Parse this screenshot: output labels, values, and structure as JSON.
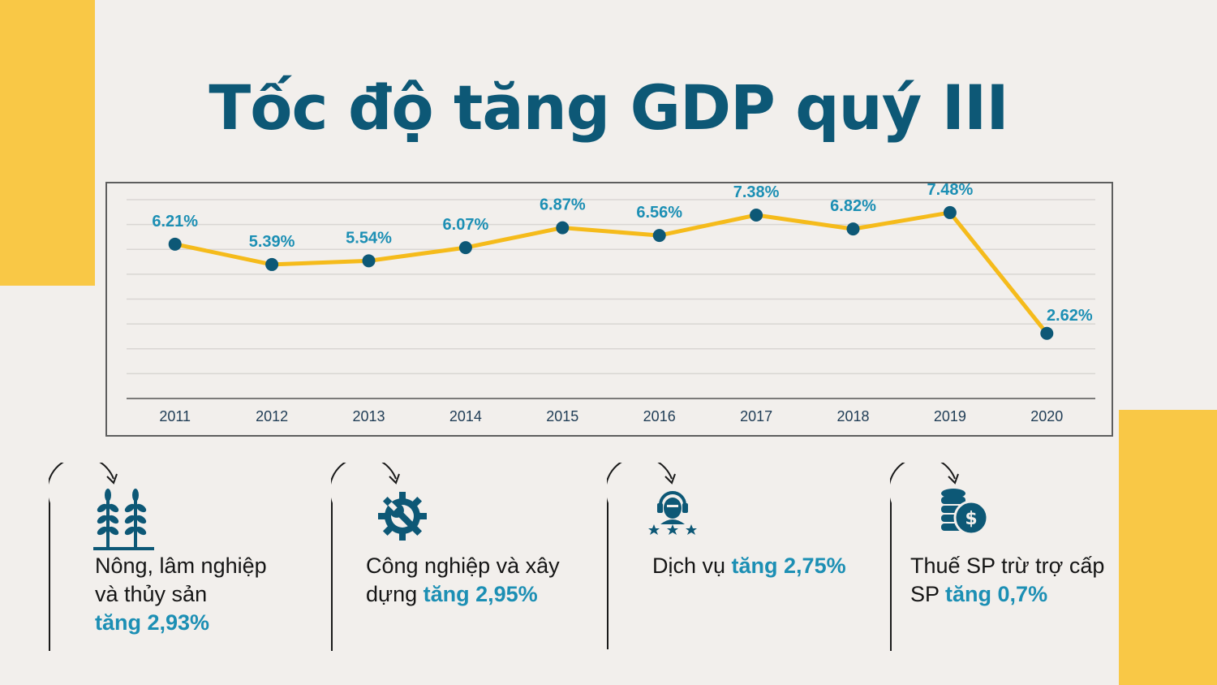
{
  "title": "Tốc độ tăng GDP quý III",
  "colors": {
    "accent": "#f9c846",
    "title": "#0d5876",
    "line": "#f5bb1b",
    "marker": "#0d5876",
    "label": "#1c8fb4"
  },
  "chart_data": {
    "type": "line",
    "categories": [
      "2011",
      "2012",
      "2013",
      "2014",
      "2015",
      "2016",
      "2017",
      "2018",
      "2019",
      "2020"
    ],
    "series": [
      {
        "values": [
          6.21,
          5.39,
          5.54,
          6.07,
          6.87,
          6.56,
          7.38,
          6.82,
          7.48,
          2.62
        ]
      }
    ],
    "data_labels": [
      "6.21%",
      "5.39%",
      "5.54%",
      "6.07%",
      "6.87%",
      "6.56%",
      "7.38%",
      "6.82%",
      "7.48%",
      "2.62%"
    ],
    "ylim": [
      0,
      8
    ],
    "grid": true,
    "legend": "none",
    "title": "",
    "xlabel": "",
    "ylabel": ""
  },
  "sectors": [
    {
      "icon": "wheat-icon",
      "line1": "Nông, lâm nghiệp",
      "line2": "và thủy sản",
      "highlight": "tăng 2,93%"
    },
    {
      "icon": "gear-wrench-icon",
      "line1": "Công nghiệp và xây",
      "line2": "dựng",
      "highlight": "tăng 2,95%"
    },
    {
      "icon": "service-agent-icon",
      "line1": "Dịch vụ",
      "highlight": "tăng 2,75%"
    },
    {
      "icon": "coins-dollar-icon",
      "line1": "Thuế SP trừ trợ cấp",
      "line2": "SP",
      "highlight": "tăng 0,7%"
    }
  ]
}
